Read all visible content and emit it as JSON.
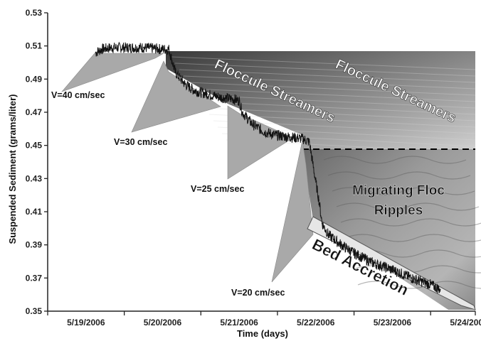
{
  "chart_data": {
    "type": "line",
    "title": "",
    "xlabel": "Time (days)",
    "ylabel": "Suspended Sediment (grams/liter)",
    "ylim": [
      0.35,
      0.53
    ],
    "yticks": [
      "0.35",
      "0.37",
      "0.39",
      "0.41",
      "0.43",
      "0.45",
      "0.47",
      "0.49",
      "0.51",
      "0.53"
    ],
    "xlim": [
      "5/19/2006 00:00",
      "5/24/2006 14:00"
    ],
    "xticks": [
      "5/19/2006",
      "5/20/2006",
      "5/21/2006",
      "5/22/2006",
      "5/23/2006",
      "5/24/2006"
    ],
    "grid": false,
    "series": [
      {
        "x": [
          "5/19/2006 15:00",
          "5/19/2006 17:00",
          "5/19/2006 20:00",
          "5/20/2006 00:00",
          "5/20/2006 06:00",
          "5/20/2006 12:00",
          "5/20/2006 14:00",
          "5/20/2006 16:00",
          "5/20/2006 19:00",
          "5/20/2006 22:00",
          "5/21/2006 02:00",
          "5/21/2006 06:00",
          "5/21/2006 10:00",
          "5/21/2006 12:00",
          "5/21/2006 13:00",
          "5/21/2006 16:00",
          "5/21/2006 20:00",
          "5/22/2006 00:00",
          "5/22/2006 04:00",
          "5/22/2006 08:00",
          "5/22/2006 10:00",
          "5/22/2006 11:00",
          "5/22/2006 12:00",
          "5/22/2006 13:00",
          "5/22/2006 14:00",
          "5/22/2006 16:00",
          "5/22/2006 20:00",
          "5/23/2006 00:00",
          "5/23/2006 06:00",
          "5/23/2006 12:00",
          "5/23/2006 18:00",
          "5/24/2006 00:00",
          "5/24/2006 03:00"
        ],
        "values": [
          0.506,
          0.508,
          0.509,
          0.509,
          0.509,
          0.508,
          0.508,
          0.494,
          0.487,
          0.483,
          0.481,
          0.479,
          0.478,
          0.477,
          0.47,
          0.463,
          0.458,
          0.456,
          0.455,
          0.454,
          0.452,
          0.44,
          0.428,
          0.417,
          0.403,
          0.396,
          0.39,
          0.385,
          0.379,
          0.375,
          0.37,
          0.366,
          0.363
        ]
      }
    ],
    "annotations": {
      "velocities": [
        "V=40 cm/sec",
        "V=30 cm/sec",
        "V=25 cm/sec",
        "V=20 cm/sec"
      ],
      "photo_labels": [
        "Floccule Streamers",
        "Floccule Streamers",
        "Migrating Floc Ripples",
        "Bed Accretion"
      ]
    },
    "colors": {
      "line": "#111111",
      "callout_fill": "#a9a9a9",
      "axis": "#222222"
    }
  }
}
